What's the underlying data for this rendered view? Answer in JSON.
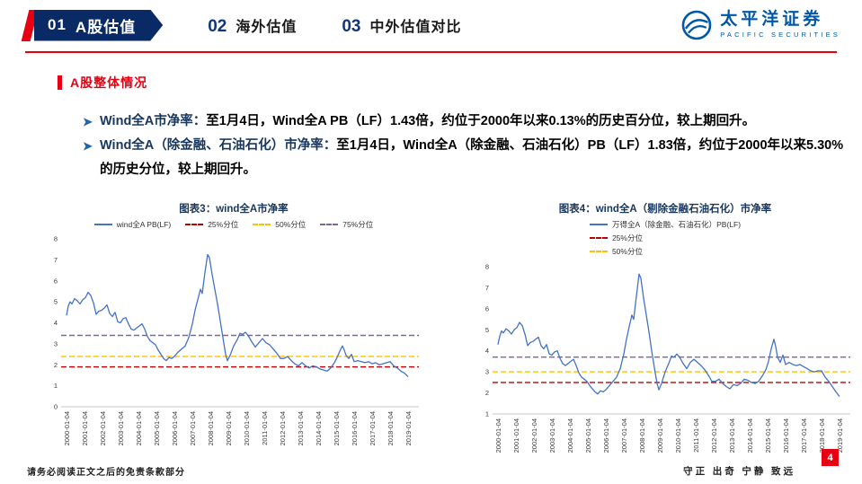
{
  "nav": {
    "items": [
      {
        "num": "01",
        "label": "A股估值",
        "active": true
      },
      {
        "num": "02",
        "label": "海外估值",
        "active": false
      },
      {
        "num": "03",
        "label": "中外估值对比",
        "active": false
      }
    ]
  },
  "logo": {
    "name_cn": "太平洋证券",
    "name_en": "PACIFIC SECURITIES"
  },
  "section": {
    "title": "A股整体情况"
  },
  "bullets": [
    {
      "lead": "Wind全A市净率：",
      "text": "至1月4日，Wind全A PB（LF）1.43倍，约位于2000年以来0.13%的历史百分位，较上期回升。"
    },
    {
      "lead": "Wind全A（除金融、石油石化）市净率：",
      "text": "至1月4日，Wind全A（除金融、石油石化）PB（LF）1.83倍，约位于2000年以来5.30%的历史分位，较上期回升。"
    }
  ],
  "footer": {
    "disclaimer": "请务必阅读正文之后的免责条款部分",
    "motto": "守正 出奇 宁静 致远",
    "page": "4"
  },
  "chart_data": [
    {
      "type": "line",
      "title": "图表3：wind全A市净率",
      "xlim": [
        1999.7,
        2019.6
      ],
      "ylim": [
        0,
        8
      ],
      "y_ticks": [
        0,
        1,
        2,
        3,
        4,
        5,
        6,
        7,
        8
      ],
      "x_ticks": [
        "2000-01-04",
        "2001-01-04",
        "2002-01-04",
        "2003-01-04",
        "2004-01-04",
        "2005-01-04",
        "2006-01-04",
        "2007-01-04",
        "2008-01-04",
        "2009-01-04",
        "2010-01-04",
        "2011-01-04",
        "2012-01-04",
        "2013-01-04",
        "2014-01-04",
        "2015-01-04",
        "2016-01-04",
        "2017-01-04",
        "2018-01-04",
        "2019-01-04"
      ],
      "grid": false,
      "legend_position": "top-row",
      "series": [
        {
          "name": "wind全A PB(LF)",
          "color": "#4472C4",
          "style": "solid",
          "points": [
            [
              2000.0,
              4.35
            ],
            [
              2000.1,
              4.8
            ],
            [
              2000.2,
              5.0
            ],
            [
              2000.3,
              4.9
            ],
            [
              2000.45,
              5.15
            ],
            [
              2000.6,
              5.05
            ],
            [
              2000.75,
              4.9
            ],
            [
              2000.9,
              5.1
            ],
            [
              2001.05,
              5.2
            ],
            [
              2001.2,
              5.45
            ],
            [
              2001.35,
              5.3
            ],
            [
              2001.5,
              4.95
            ],
            [
              2001.65,
              4.4
            ],
            [
              2001.8,
              4.55
            ],
            [
              2001.95,
              4.6
            ],
            [
              2002.1,
              4.7
            ],
            [
              2002.25,
              4.85
            ],
            [
              2002.4,
              4.45
            ],
            [
              2002.55,
              4.3
            ],
            [
              2002.7,
              4.5
            ],
            [
              2002.85,
              4.05
            ],
            [
              2003.0,
              4.0
            ],
            [
              2003.15,
              4.2
            ],
            [
              2003.3,
              4.25
            ],
            [
              2003.45,
              3.95
            ],
            [
              2003.6,
              3.7
            ],
            [
              2003.75,
              3.65
            ],
            [
              2003.9,
              3.75
            ],
            [
              2004.05,
              3.85
            ],
            [
              2004.2,
              3.95
            ],
            [
              2004.35,
              3.7
            ],
            [
              2004.5,
              3.35
            ],
            [
              2004.65,
              3.15
            ],
            [
              2004.8,
              3.05
            ],
            [
              2004.95,
              2.95
            ],
            [
              2005.1,
              2.7
            ],
            [
              2005.25,
              2.5
            ],
            [
              2005.4,
              2.3
            ],
            [
              2005.55,
              2.2
            ],
            [
              2005.7,
              2.35
            ],
            [
              2005.85,
              2.3
            ],
            [
              2006.0,
              2.4
            ],
            [
              2006.2,
              2.6
            ],
            [
              2006.4,
              2.75
            ],
            [
              2006.6,
              2.9
            ],
            [
              2006.8,
              3.3
            ],
            [
              2007.0,
              3.95
            ],
            [
              2007.15,
              4.6
            ],
            [
              2007.3,
              5.1
            ],
            [
              2007.45,
              5.6
            ],
            [
              2007.55,
              5.4
            ],
            [
              2007.7,
              6.4
            ],
            [
              2007.85,
              7.25
            ],
            [
              2007.95,
              7.1
            ],
            [
              2008.1,
              6.3
            ],
            [
              2008.25,
              5.6
            ],
            [
              2008.4,
              4.9
            ],
            [
              2008.55,
              4.1
            ],
            [
              2008.7,
              3.3
            ],
            [
              2008.85,
              2.5
            ],
            [
              2008.95,
              2.2
            ],
            [
              2009.1,
              2.45
            ],
            [
              2009.3,
              2.9
            ],
            [
              2009.5,
              3.2
            ],
            [
              2009.65,
              3.5
            ],
            [
              2009.8,
              3.45
            ],
            [
              2009.95,
              3.55
            ],
            [
              2010.1,
              3.4
            ],
            [
              2010.3,
              3.1
            ],
            [
              2010.5,
              2.85
            ],
            [
              2010.7,
              3.05
            ],
            [
              2010.9,
              3.25
            ],
            [
              2011.1,
              3.05
            ],
            [
              2011.3,
              2.95
            ],
            [
              2011.5,
              2.75
            ],
            [
              2011.7,
              2.55
            ],
            [
              2011.9,
              2.3
            ],
            [
              2012.1,
              2.3
            ],
            [
              2012.3,
              2.4
            ],
            [
              2012.5,
              2.2
            ],
            [
              2012.7,
              2.05
            ],
            [
              2012.9,
              1.95
            ],
            [
              2013.1,
              2.1
            ],
            [
              2013.3,
              1.95
            ],
            [
              2013.5,
              1.85
            ],
            [
              2013.7,
              1.95
            ],
            [
              2013.9,
              1.9
            ],
            [
              2014.1,
              1.8
            ],
            [
              2014.3,
              1.75
            ],
            [
              2014.5,
              1.7
            ],
            [
              2014.7,
              1.85
            ],
            [
              2014.9,
              2.1
            ],
            [
              2015.05,
              2.35
            ],
            [
              2015.2,
              2.65
            ],
            [
              2015.35,
              2.9
            ],
            [
              2015.45,
              2.7
            ],
            [
              2015.55,
              2.45
            ],
            [
              2015.7,
              2.3
            ],
            [
              2015.85,
              2.5
            ],
            [
              2016.0,
              2.15
            ],
            [
              2016.2,
              2.2
            ],
            [
              2016.4,
              2.15
            ],
            [
              2016.6,
              2.1
            ],
            [
              2016.8,
              2.15
            ],
            [
              2017.0,
              2.05
            ],
            [
              2017.2,
              2.1
            ],
            [
              2017.4,
              2.0
            ],
            [
              2017.6,
              2.05
            ],
            [
              2017.8,
              2.1
            ],
            [
              2018.0,
              2.15
            ],
            [
              2018.2,
              1.95
            ],
            [
              2018.4,
              1.85
            ],
            [
              2018.6,
              1.7
            ],
            [
              2018.8,
              1.6
            ],
            [
              2019.0,
              1.43
            ]
          ]
        }
      ],
      "ref_lines": [
        {
          "name": "25%分位",
          "value": 1.9,
          "color": "#C00000",
          "in_legend": true
        },
        {
          "name": "50%分位",
          "value": 2.4,
          "color": "#FFC000",
          "in_legend": true
        },
        {
          "name": "75%分位",
          "value": 3.4,
          "color": "#8064A2",
          "in_legend": true
        }
      ]
    },
    {
      "type": "line",
      "title": "图表4：wind全A（剔除金融石油石化）市净率",
      "xlim": [
        1999.7,
        2019.6
      ],
      "ylim": [
        1,
        8
      ],
      "y_ticks": [
        1,
        2,
        3,
        4,
        5,
        6,
        7,
        8
      ],
      "x_ticks": [
        "2000-01-04",
        "2001-01-04",
        "2002-01-04",
        "2003-01-04",
        "2004-01-04",
        "2005-01-04",
        "2006-01-04",
        "2007-01-04",
        "2008-01-04",
        "2009-01-04",
        "2010-01-04",
        "2011-01-04",
        "2012-01-04",
        "2013-01-04",
        "2014-01-04",
        "2015-01-04",
        "2016-01-04",
        "2017-01-04",
        "2018-01-04",
        "2019-01-04"
      ],
      "grid": false,
      "legend_position": "top-stack",
      "series": [
        {
          "name": "万得全A（除金融、石油石化）PB(LF)",
          "color": "#4472C4",
          "style": "solid",
          "points": [
            [
              2000.0,
              4.3
            ],
            [
              2000.1,
              4.7
            ],
            [
              2000.2,
              4.95
            ],
            [
              2000.3,
              4.85
            ],
            [
              2000.45,
              5.05
            ],
            [
              2000.6,
              4.95
            ],
            [
              2000.75,
              4.8
            ],
            [
              2000.9,
              5.0
            ],
            [
              2001.05,
              5.1
            ],
            [
              2001.2,
              5.35
            ],
            [
              2001.35,
              5.2
            ],
            [
              2001.5,
              4.8
            ],
            [
              2001.65,
              4.25
            ],
            [
              2001.8,
              4.4
            ],
            [
              2001.95,
              4.45
            ],
            [
              2002.1,
              4.55
            ],
            [
              2002.25,
              4.65
            ],
            [
              2002.4,
              4.25
            ],
            [
              2002.55,
              4.1
            ],
            [
              2002.7,
              4.3
            ],
            [
              2002.85,
              3.85
            ],
            [
              2003.0,
              3.8
            ],
            [
              2003.15,
              3.95
            ],
            [
              2003.3,
              4.0
            ],
            [
              2003.45,
              3.65
            ],
            [
              2003.6,
              3.4
            ],
            [
              2003.75,
              3.3
            ],
            [
              2003.9,
              3.4
            ],
            [
              2004.05,
              3.5
            ],
            [
              2004.2,
              3.6
            ],
            [
              2004.35,
              3.3
            ],
            [
              2004.5,
              2.95
            ],
            [
              2004.65,
              2.75
            ],
            [
              2004.8,
              2.65
            ],
            [
              2004.95,
              2.55
            ],
            [
              2005.1,
              2.35
            ],
            [
              2005.25,
              2.2
            ],
            [
              2005.4,
              2.05
            ],
            [
              2005.55,
              1.95
            ],
            [
              2005.7,
              2.1
            ],
            [
              2005.85,
              2.05
            ],
            [
              2006.0,
              2.15
            ],
            [
              2006.2,
              2.35
            ],
            [
              2006.4,
              2.55
            ],
            [
              2006.6,
              2.75
            ],
            [
              2006.8,
              3.15
            ],
            [
              2007.0,
              3.85
            ],
            [
              2007.15,
              4.55
            ],
            [
              2007.3,
              5.15
            ],
            [
              2007.45,
              5.7
            ],
            [
              2007.55,
              5.5
            ],
            [
              2007.7,
              6.6
            ],
            [
              2007.85,
              7.65
            ],
            [
              2007.95,
              7.45
            ],
            [
              2008.1,
              6.5
            ],
            [
              2008.25,
              5.7
            ],
            [
              2008.4,
              4.9
            ],
            [
              2008.55,
              4.0
            ],
            [
              2008.7,
              3.2
            ],
            [
              2008.85,
              2.45
            ],
            [
              2008.95,
              2.15
            ],
            [
              2009.1,
              2.45
            ],
            [
              2009.3,
              3.0
            ],
            [
              2009.5,
              3.4
            ],
            [
              2009.65,
              3.75
            ],
            [
              2009.8,
              3.7
            ],
            [
              2009.95,
              3.85
            ],
            [
              2010.1,
              3.7
            ],
            [
              2010.3,
              3.4
            ],
            [
              2010.5,
              3.15
            ],
            [
              2010.7,
              3.45
            ],
            [
              2010.9,
              3.6
            ],
            [
              2011.1,
              3.45
            ],
            [
              2011.3,
              3.3
            ],
            [
              2011.5,
              3.1
            ],
            [
              2011.7,
              2.85
            ],
            [
              2011.9,
              2.55
            ],
            [
              2012.1,
              2.55
            ],
            [
              2012.3,
              2.65
            ],
            [
              2012.5,
              2.45
            ],
            [
              2012.7,
              2.3
            ],
            [
              2012.9,
              2.2
            ],
            [
              2013.1,
              2.4
            ],
            [
              2013.3,
              2.35
            ],
            [
              2013.5,
              2.45
            ],
            [
              2013.7,
              2.65
            ],
            [
              2013.9,
              2.6
            ],
            [
              2014.1,
              2.5
            ],
            [
              2014.3,
              2.45
            ],
            [
              2014.5,
              2.55
            ],
            [
              2014.7,
              2.8
            ],
            [
              2014.9,
              3.1
            ],
            [
              2015.05,
              3.5
            ],
            [
              2015.2,
              4.1
            ],
            [
              2015.35,
              4.55
            ],
            [
              2015.45,
              4.2
            ],
            [
              2015.55,
              3.7
            ],
            [
              2015.7,
              3.45
            ],
            [
              2015.85,
              3.8
            ],
            [
              2016.0,
              3.35
            ],
            [
              2016.2,
              3.45
            ],
            [
              2016.4,
              3.35
            ],
            [
              2016.6,
              3.3
            ],
            [
              2016.8,
              3.35
            ],
            [
              2017.0,
              3.25
            ],
            [
              2017.2,
              3.15
            ],
            [
              2017.4,
              3.05
            ],
            [
              2017.6,
              3.0
            ],
            [
              2017.8,
              3.05
            ],
            [
              2018.0,
              3.05
            ],
            [
              2018.2,
              2.75
            ],
            [
              2018.4,
              2.55
            ],
            [
              2018.6,
              2.3
            ],
            [
              2018.8,
              2.05
            ],
            [
              2019.0,
              1.83
            ]
          ]
        }
      ],
      "ref_lines": [
        {
          "name": "25%分位",
          "value": 2.5,
          "color": "#C00000",
          "in_legend": true
        },
        {
          "name": "50%分位",
          "value": 3.0,
          "color": "#FFC000",
          "in_legend": true
        },
        {
          "name": "75%分位",
          "value": 3.7,
          "color": "#8064A2",
          "in_legend": false
        }
      ]
    }
  ]
}
